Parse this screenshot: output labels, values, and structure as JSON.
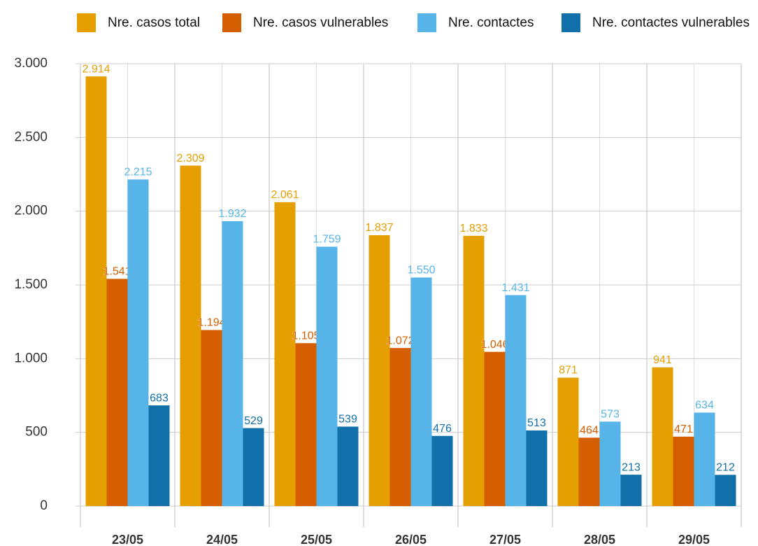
{
  "chart_data": {
    "type": "bar",
    "categories": [
      "23/05",
      "24/05",
      "25/05",
      "26/05",
      "27/05",
      "28/05",
      "29/05"
    ],
    "series": [
      {
        "name": "Nre. casos total",
        "color": "#e69f00",
        "values": [
          2914,
          2309,
          2061,
          1837,
          1833,
          871,
          941
        ],
        "value_labels": [
          "2.914",
          "2.309",
          "2.061",
          "1.837",
          "1.833",
          "871",
          "941"
        ]
      },
      {
        "name": "Nre. casos vulnerables",
        "color": "#d55e00",
        "values": [
          1541,
          1194,
          1105,
          1072,
          1046,
          464,
          471
        ],
        "value_labels": [
          "1.541",
          "1.194",
          "1.105",
          "1.072",
          "1.046",
          "464",
          "471"
        ]
      },
      {
        "name": "Nre. contactes",
        "color": "#56b4e9",
        "values": [
          2215,
          1932,
          1759,
          1550,
          1431,
          573,
          634
        ],
        "value_labels": [
          "2.215",
          "1.932",
          "1.759",
          "1.550",
          "1.431",
          "573",
          "634"
        ]
      },
      {
        "name": "Nre. contactes vulnerables",
        "color": "#1170aa",
        "values": [
          683,
          529,
          539,
          476,
          513,
          213,
          212
        ],
        "value_labels": [
          "683",
          "529",
          "539",
          "476",
          "513",
          "213",
          "212"
        ]
      }
    ],
    "ylim": [
      0,
      3000
    ],
    "yticks": [
      0,
      500,
      {
        "value": 1000,
        "label": "1.000"
      },
      {
        "value": 1500,
        "label": "1.500"
      },
      {
        "value": 2000,
        "label": "2.000"
      },
      {
        "value": 2500,
        "label": "2.500"
      },
      {
        "value": 3000,
        "label": "3.000"
      }
    ],
    "grid": true,
    "legend": "top"
  }
}
